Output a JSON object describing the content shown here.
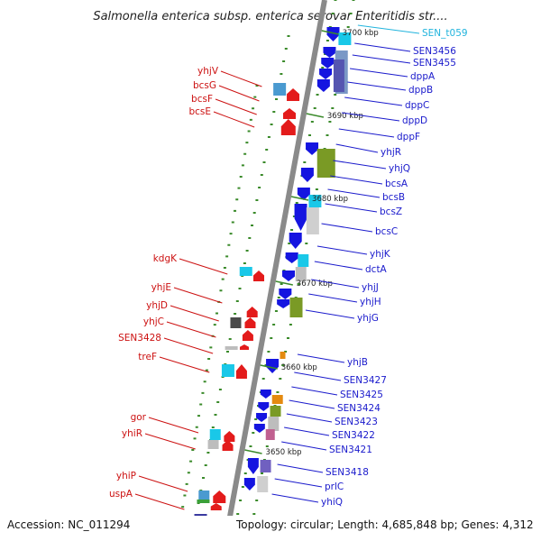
{
  "title": "Salmonella enterica subsp. enterica serovar Enteritidis str....",
  "footer": {
    "accession": "Accession: NC_011294",
    "topology": "Topology: circular; Length: 4,685,848 bp; Genes: 4,312"
  },
  "colors": {
    "backbone": "#8a8a8a",
    "right_label": "#1a1acc",
    "left_label": "#cc1111",
    "trna_label": "#22b4dd",
    "tick": "#3a8a2a"
  },
  "ticks": [
    "3700 kbp",
    "3690 kbp",
    "3680 kbp",
    "3670 kbp",
    "3660 kbp",
    "3650 kbp"
  ],
  "right_genes": [
    "SEN_t059",
    "SEN3456",
    "SEN3455",
    "dppA",
    "dppB",
    "dppC",
    "dppD",
    "dppF",
    "yhjR",
    "yhjQ",
    "bcsA",
    "bcsB",
    "bcsZ",
    "bcsC",
    "yhjK",
    "dctA",
    "yhjJ",
    "yhjH",
    "yhjG",
    "yhjB",
    "SEN3427",
    "SEN3425",
    "SEN3424",
    "SEN3423",
    "SEN3422",
    "SEN3421",
    "SEN3418",
    "prlC",
    "yhiQ"
  ],
  "left_genes": [
    "yhjV",
    "bcsG",
    "bcsF",
    "bcsE",
    "kdgK",
    "yhjE",
    "yhjD",
    "yhjC",
    "SEN3428",
    "treF",
    "gor",
    "yhiR",
    "yhiP",
    "uspA"
  ]
}
